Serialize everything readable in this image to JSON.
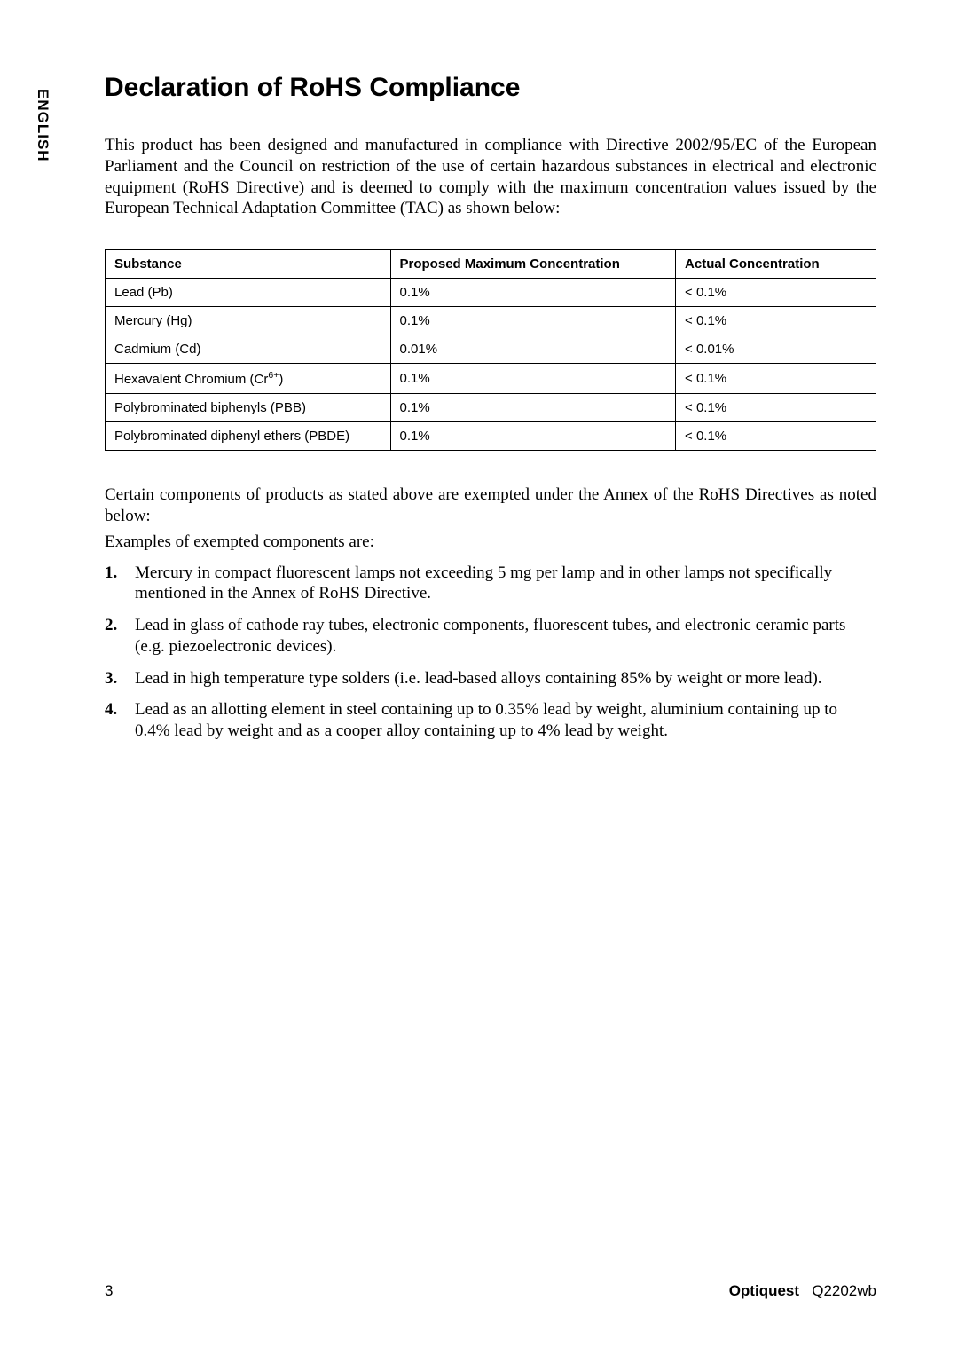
{
  "sideTab": "ENGLISH",
  "title": "Declaration of RoHS Compliance",
  "intro": "This product has been designed and manufactured in compliance with Directive 2002/95/EC of the European Parliament and the Council on restriction of the use of certain hazardous substances in electrical and electronic equipment (RoHS Directive) and is deemed to comply with the maximum concentration values issued by the European Technical Adaptation Committee (TAC) as shown below:",
  "table": {
    "headers": {
      "substance": "Substance",
      "proposed": "Proposed Maximum Concentration",
      "actual": "Actual Concentration"
    },
    "rows": [
      {
        "substance": "Lead (Pb)",
        "proposed": "0.1%",
        "actual": "< 0.1%"
      },
      {
        "substance": "Mercury (Hg)",
        "proposed": "0.1%",
        "actual": "< 0.1%"
      },
      {
        "substance": "Cadmium (Cd)",
        "proposed": "0.01%",
        "actual": "< 0.01%"
      },
      {
        "substance_html": "Hexavalent Chromium (Cr<sup>6+</sup>)",
        "proposed": "0.1%",
        "actual": "< 0.1%"
      },
      {
        "substance": "Polybrominated biphenyls (PBB)",
        "proposed": "0.1%",
        "actual": "< 0.1%"
      },
      {
        "substance": "Polybrominated diphenyl ethers (PBDE)",
        "proposed": "0.1%",
        "actual": "< 0.1%"
      }
    ]
  },
  "afterTable": "Certain components of products as stated above are exempted under the Annex of the RoHS Directives as noted below:",
  "examplesLabel": "Examples of exempted components are:",
  "listItems": [
    "Mercury in compact fluorescent lamps not exceeding 5 mg per lamp and in other lamps not specifically mentioned in the Annex of RoHS Directive.",
    "Lead in glass of cathode ray tubes, electronic components, fluorescent tubes, and electronic ceramic parts (e.g. piezoelectronic devices).",
    "Lead in high temperature type solders (i.e. lead-based alloys containing 85% by weight or more lead).",
    "Lead as an allotting element in steel containing up to 0.35% lead by weight, aluminium containing up to 0.4% lead by weight and as a cooper alloy containing up to 4% lead by weight."
  ],
  "footer": {
    "page": "3",
    "brand": "Optiquest",
    "model": "Q2202wb"
  }
}
